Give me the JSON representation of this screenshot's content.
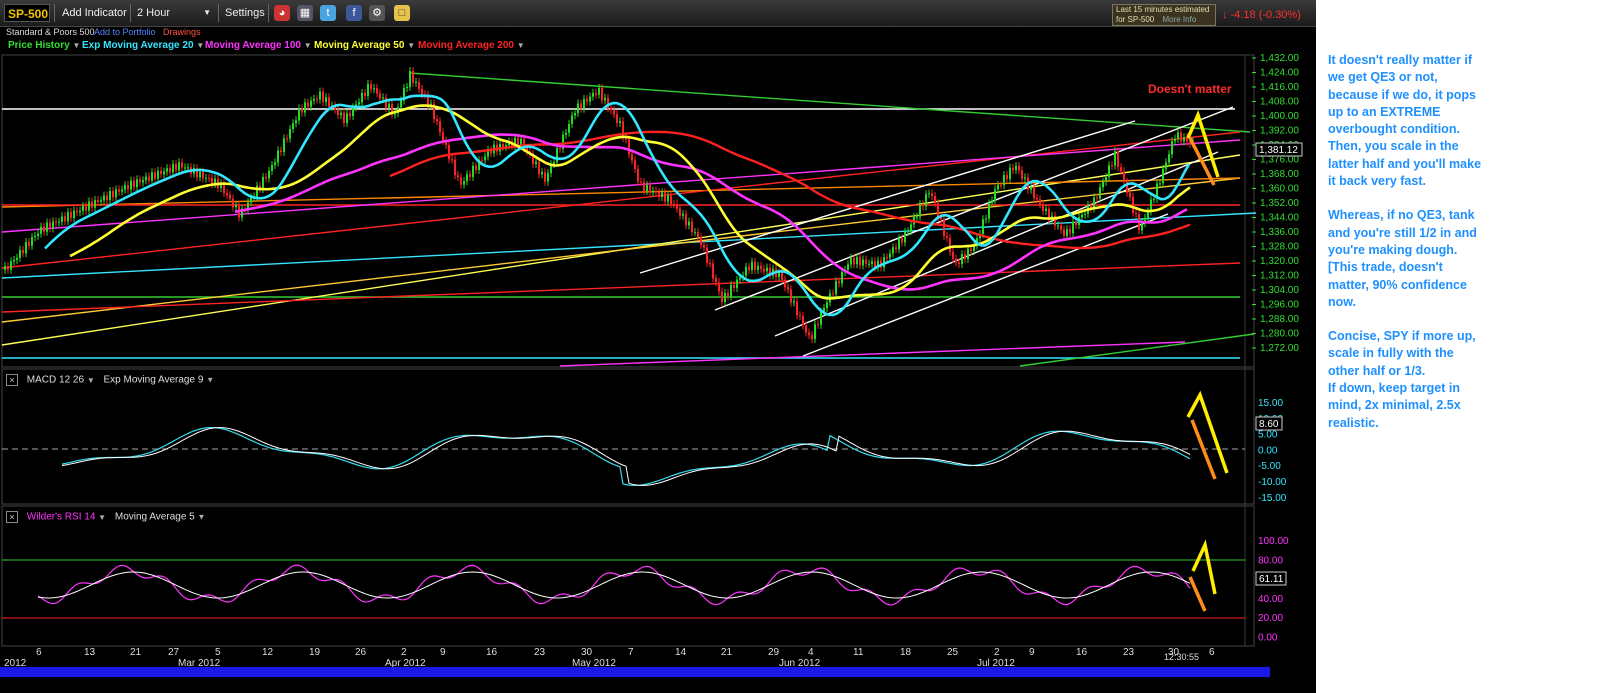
{
  "toolbar": {
    "symbol": "SP-500",
    "add_indicator": "Add Indicator",
    "interval": "2 Hour",
    "settings": "Settings",
    "icons": [
      "clock-icon",
      "layout-icon",
      "twitter-icon",
      "facebook-icon",
      "gear-icon",
      "note-icon"
    ]
  },
  "subbar": {
    "name": "Standard & Poors 500",
    "add_portfolio": "Add to Portfolio",
    "drawings": "Drawings"
  },
  "quote": {
    "estimate_line1": "Last 15 minutes estimated",
    "estimate_line2": "for SP-500",
    "more_info": "More Info",
    "change": "-4.18 (-0.30%)",
    "change_color": "#ff3030"
  },
  "indicators": [
    {
      "label": "Price History",
      "color": "#33dd33"
    },
    {
      "label": "Exp Moving Average 20",
      "color": "#33e6ff"
    },
    {
      "label": "Moving Average 100",
      "color": "#ff33ff"
    },
    {
      "label": "Moving Average 50",
      "color": "#ffff33"
    },
    {
      "label": "Moving Average 200",
      "color": "#ff2222"
    }
  ],
  "price_axis": [
    "1,432.00",
    "1,424.00",
    "1,416.00",
    "1,408.00",
    "1,400.00",
    "1,392.00",
    "1,384.00",
    "1,376.00",
    "1,368.00",
    "1,360.00",
    "1,352.00",
    "1,344.00",
    "1,336.00",
    "1,328.00",
    "1,320.00",
    "1,312.00",
    "1,304.00",
    "1,296.00",
    "1,288.00",
    "1,280.00",
    "1,272.00"
  ],
  "last_price": "1,381.12",
  "chart_note": "Doesn't matter",
  "macd": {
    "label": "MACD 12 26",
    "signal": "Exp Moving Average 9",
    "axis": [
      "15.00",
      "10.00",
      "5.00",
      "0.00",
      "-5.00",
      "-10.00",
      "-15.00"
    ],
    "last": "8.60"
  },
  "rsi": {
    "label": "Wilder's RSI 14",
    "signal": "Moving Average 5",
    "axis": [
      "100.00",
      "80.00",
      "60.00",
      "40.00",
      "20.00",
      "0.00"
    ],
    "last": "61.11"
  },
  "x_axis": {
    "days": [
      "6",
      "13",
      "21",
      "27",
      "5",
      "12",
      "19",
      "26",
      "2",
      "9",
      "16",
      "23",
      "30",
      "7",
      "14",
      "21",
      "29",
      "4",
      "11",
      "18",
      "25",
      "2",
      "9",
      "16",
      "23",
      "30",
      "6"
    ],
    "months": [
      "2012",
      "Mar 2012",
      "Apr 2012",
      "May 2012",
      "Jun 2012",
      "Jul 2012"
    ],
    "time": "12:30:55"
  },
  "annotation": {
    "p1": "It doesn't really matter if we get QE3 or not, because if we do, it pops up to an EXTREME overbought condition. Then, you scale in the latter half and you'll make it back very fast.",
    "p2": "Whereas, if no QE3, tank and you're still 1/2 in and you're making dough. [This trade, doesn't matter, 90% confidence now.",
    "p3": "Concise, SPY if more up, scale in fully with the other half or 1/3.",
    "p4": "If down, keep target in mind, 2x minimal, 2.5x realistic."
  }
}
